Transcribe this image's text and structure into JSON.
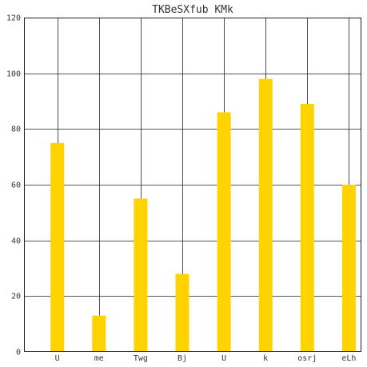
{
  "chart_data": {
    "type": "bar",
    "title": "TKBeSXfub KMk",
    "xlabel": "",
    "ylabel": "",
    "categories": [
      "U",
      "me",
      "Twg",
      "Bj",
      "U",
      "k",
      "osrj",
      "eLh"
    ],
    "values": [
      75,
      13,
      55,
      28,
      86,
      98,
      89,
      60
    ],
    "ylim": [
      0,
      120
    ],
    "yticks": [
      0,
      20,
      40,
      60,
      80,
      100,
      120
    ],
    "grid": true,
    "bar_color": "#FFD300"
  }
}
